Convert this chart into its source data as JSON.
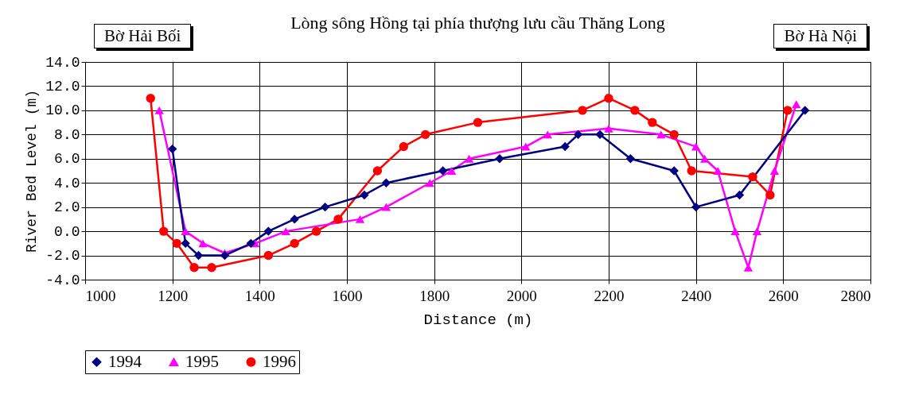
{
  "chart_data": {
    "type": "line",
    "title": "Lòng sông Hồng tại phía thượng lưu cầu Thăng Long",
    "xlabel": "Distance (m)",
    "ylabel": "River Bed Level (m)",
    "annotations": [
      "Bờ Hải Bối",
      "Bờ Hà Nội"
    ],
    "xlim": [
      1000,
      2800
    ],
    "xticks": [
      1000,
      1200,
      1400,
      1600,
      1800,
      2000,
      2200,
      2400,
      2600,
      2800
    ],
    "ylim": [
      -4,
      14
    ],
    "yticks": [
      {
        "value": -4,
        "label": "-4.0"
      },
      {
        "value": -2,
        "label": "-2.0"
      },
      {
        "value": 0,
        "label": "0.0"
      },
      {
        "value": 2,
        "label": "2.0"
      },
      {
        "value": 4,
        "label": "4.0"
      },
      {
        "value": 6,
        "label": "6.0"
      },
      {
        "value": 8,
        "label": "8.0"
      },
      {
        "value": 10,
        "label": "10.0"
      },
      {
        "value": 12,
        "label": "12.0"
      },
      {
        "value": 14,
        "label": "14.0"
      }
    ],
    "grid": true,
    "legend": "bottom",
    "line_style": "solid",
    "series": [
      {
        "name": "1994",
        "color": "#000080",
        "marker": "diamond",
        "x": [
          1200,
          1230,
          1260,
          1320,
          1380,
          1420,
          1480,
          1550,
          1640,
          1690,
          1820,
          1950,
          2100,
          2130,
          2180,
          2250,
          2350,
          2400,
          2500,
          2650
        ],
        "values": [
          6.8,
          -1,
          -2,
          -2,
          -1,
          0,
          1,
          2,
          3,
          4,
          5,
          6,
          7,
          8,
          8,
          6,
          5,
          2,
          3,
          10
        ]
      },
      {
        "name": "1995",
        "color": "#ff00ff",
        "marker": "triangle",
        "x": [
          1170,
          1230,
          1270,
          1320,
          1390,
          1460,
          1630,
          1690,
          1790,
          1840,
          1880,
          2010,
          2060,
          2200,
          2320,
          2400,
          2420,
          2450,
          2490,
          2520,
          2540,
          2580,
          2630
        ],
        "values": [
          10,
          0,
          -1,
          -1.8,
          -1,
          0,
          1,
          2,
          4,
          5,
          6,
          7,
          8,
          8.5,
          8,
          7,
          6,
          5,
          0,
          -3,
          0,
          5,
          10.5
        ]
      },
      {
        "name": "1996",
        "color": "#ff0000",
        "marker": "circle",
        "x": [
          1150,
          1180,
          1210,
          1250,
          1290,
          1420,
          1480,
          1530,
          1580,
          1670,
          1730,
          1780,
          1900,
          2140,
          2200,
          2260,
          2300,
          2350,
          2390,
          2530,
          2570,
          2610
        ],
        "values": [
          11,
          0,
          -1,
          -3,
          -3,
          -2,
          -1,
          0,
          1,
          5,
          7,
          8,
          9,
          10,
          11,
          10,
          9,
          8,
          5,
          4.5,
          3,
          10
        ]
      }
    ]
  }
}
